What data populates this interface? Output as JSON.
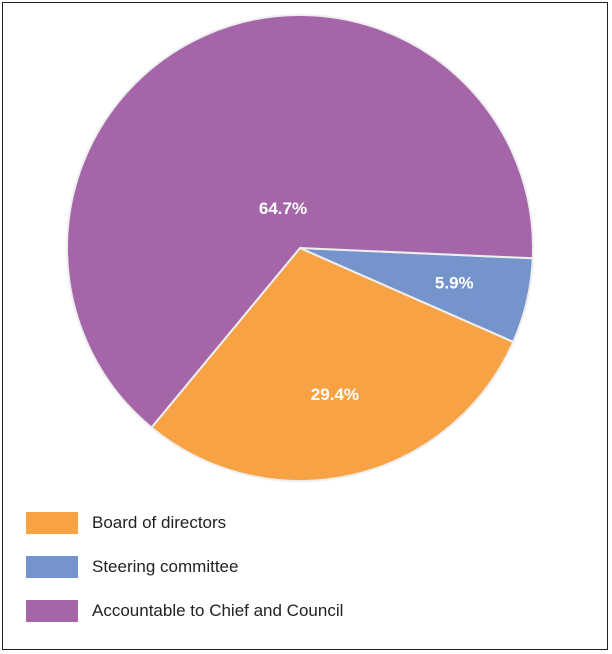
{
  "chart_data": {
    "type": "pie",
    "title": "",
    "slices": [
      {
        "label": "Board of directors",
        "value": 29.4,
        "display": "29.4%",
        "color": "#F7A345"
      },
      {
        "label": "Steering committee",
        "value": 5.9,
        "display": "5.9%",
        "color": "#7494CB"
      },
      {
        "label": "Accountable to Chief and Council",
        "value": 64.7,
        "display": "64.7%",
        "color": "#A565A9"
      }
    ],
    "legend": {
      "position": "bottom-left",
      "entries": [
        "Board of directors",
        "Steering committee",
        "Accountable to Chief and Council"
      ]
    }
  }
}
